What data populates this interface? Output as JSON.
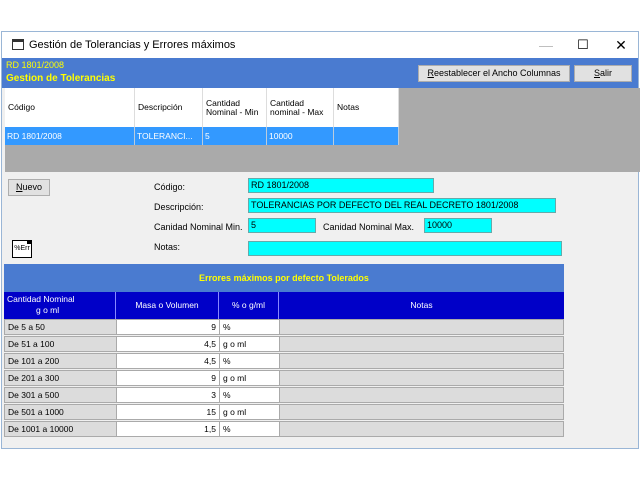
{
  "window": {
    "title": "Gestión de Tolerancias y Errores máximos",
    "minimize_glyph": "—",
    "maximize_glyph": "☐",
    "close_glyph": "✕",
    "icon_text": "ICO"
  },
  "header": {
    "code": "RD 1801/2008",
    "title": "Gestion de Tolerancias",
    "reset_button": "Reestablecer el Ancho Columnas",
    "exit_button": "Salir"
  },
  "grid1": {
    "columns": [
      "Código",
      "Descripción",
      "Cantidad Nominal - Min",
      "Cantidad nominal - Max",
      "Notas"
    ],
    "rows": [
      [
        "RD 1801/2008",
        "TOLERANCI...",
        "5",
        "10000",
        ""
      ]
    ]
  },
  "form": {
    "new_button": "Nuevo",
    "codigo_label": "Código:",
    "codigo_value": "RD 1801/2008",
    "descripcion_label": "Descripción:",
    "descripcion_value": "TOLERANCIAS POR DEFECTO DEL REAL DECRETO 1801/2008",
    "min_label": "Canidad Nominal Min.",
    "min_value": "5",
    "max_label": "Canidad Nominal Max.",
    "max_value": "10000",
    "notas_label": "Notas:",
    "notas_value": "",
    "err_icon_text": "%Err"
  },
  "errors_table": {
    "title": "Errores máximos por defecto Tolerados",
    "col_nominal_1": "Cantidad Nominal",
    "col_nominal_2": "g o ml",
    "col_masa": "Masa  o Volumen",
    "col_unit": "%  o   g/ml",
    "col_notas": "Notas",
    "rows": [
      {
        "range": "De 5 a 50",
        "value": "9",
        "unit": "%",
        "notes": ""
      },
      {
        "range": "De 51 a 100",
        "value": "4,5",
        "unit": "g o ml",
        "notes": ""
      },
      {
        "range": "De 101 a 200",
        "value": "4,5",
        "unit": "%",
        "notes": ""
      },
      {
        "range": "De 201 a 300",
        "value": "9",
        "unit": "g o ml",
        "notes": ""
      },
      {
        "range": "De 301 a 500",
        "value": "3",
        "unit": "%",
        "notes": ""
      },
      {
        "range": "De 501 a 1000",
        "value": "15",
        "unit": "g o ml",
        "notes": ""
      },
      {
        "range": "De 1001 a 10000",
        "value": "1,5",
        "unit": "%",
        "notes": ""
      }
    ]
  }
}
